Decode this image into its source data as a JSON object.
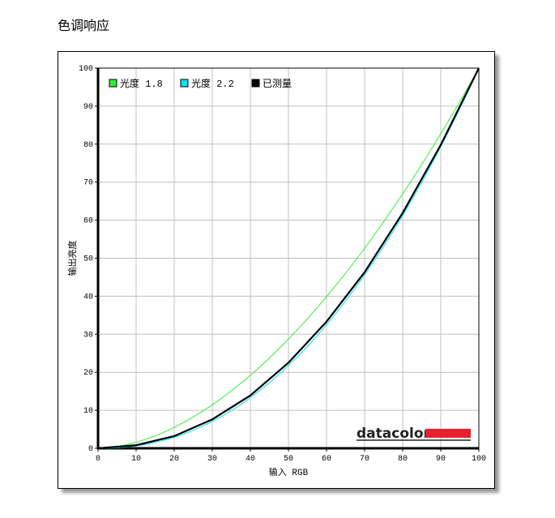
{
  "title": "色调响应",
  "chart_data": {
    "type": "line",
    "xlabel": "输入 RGB",
    "ylabel": "输出亮度",
    "xlim": [
      0,
      100
    ],
    "ylim": [
      0,
      100
    ],
    "xticks": [
      0,
      10,
      20,
      30,
      40,
      50,
      60,
      70,
      80,
      90,
      100
    ],
    "yticks": [
      0,
      10,
      20,
      30,
      40,
      50,
      60,
      70,
      80,
      90,
      100
    ],
    "grid": true,
    "legend_position": "top-left",
    "series": [
      {
        "name": "光度 1.8",
        "color": "#33ee33",
        "gamma": 1.8,
        "x": [
          0,
          10,
          20,
          30,
          40,
          50,
          60,
          70,
          80,
          90,
          100
        ],
        "y": [
          0,
          1.6,
          5.5,
          11.5,
          19.2,
          28.7,
          39.9,
          52.6,
          66.9,
          82.7,
          100
        ]
      },
      {
        "name": "光度 2.2",
        "color": "#00e5ee",
        "gamma": 2.2,
        "x": [
          0,
          10,
          20,
          30,
          40,
          50,
          60,
          70,
          80,
          90,
          100
        ],
        "y": [
          0,
          0.6,
          2.9,
          7.1,
          13.3,
          21.8,
          32.5,
          45.6,
          61.2,
          79.3,
          100
        ]
      },
      {
        "name": "已测量",
        "color": "#000000",
        "x": [
          0,
          10,
          20,
          30,
          40,
          50,
          60,
          70,
          80,
          90,
          100
        ],
        "y": [
          0,
          0.8,
          3.2,
          7.6,
          13.9,
          22.5,
          33.3,
          46.3,
          61.9,
          79.8,
          100
        ]
      }
    ]
  },
  "logo": {
    "text": "datacolor",
    "accent": "#e8202e"
  }
}
